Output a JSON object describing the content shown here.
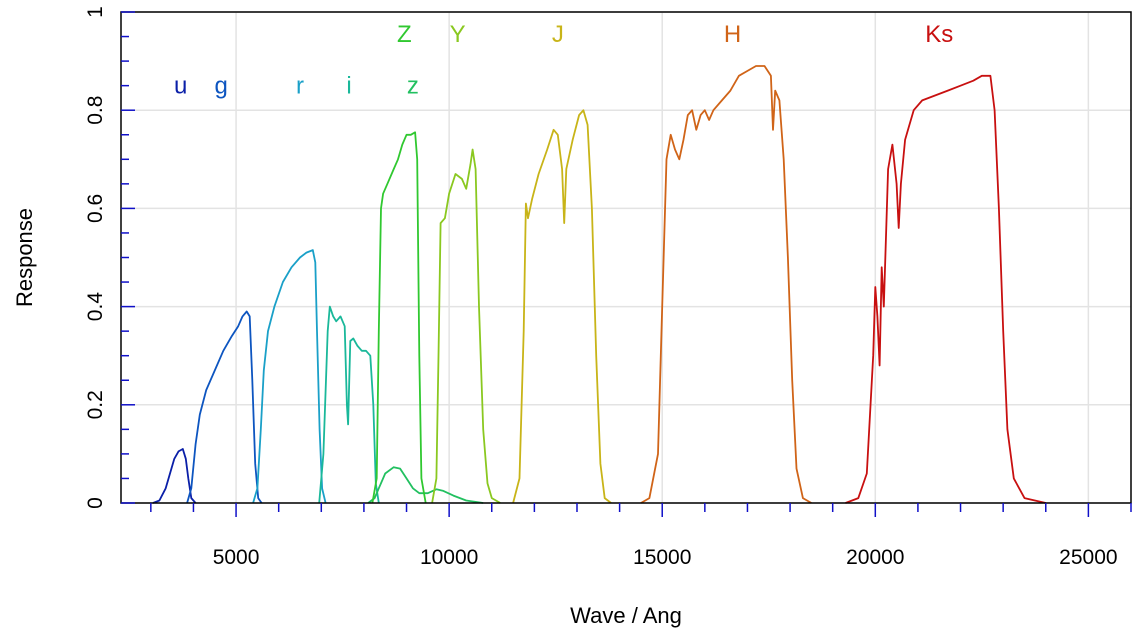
{
  "chart_data": {
    "type": "line",
    "title": "",
    "xlabel": "Wave / Ang",
    "ylabel": "Response",
    "xlim": [
      2300,
      26000
    ],
    "ylim": [
      0,
      1.0
    ],
    "x_ticks": [
      5000,
      10000,
      15000,
      20000,
      25000
    ],
    "x_tick_labels": [
      "5000",
      "10000",
      "15000",
      "20000",
      "25000"
    ],
    "x_minor_step": 1000,
    "y_ticks": [
      0,
      0.2,
      0.4,
      0.6,
      0.8,
      1.0
    ],
    "y_tick_labels": [
      "0",
      "0.2",
      "0.4",
      "0.6",
      "0.8",
      "1"
    ],
    "y_minor_step": 0.05,
    "grid": true,
    "series": [
      {
        "name": "u",
        "color": "#0a1fa8",
        "label_at": [
          3700,
          0.85
        ],
        "points": [
          [
            3050,
            0
          ],
          [
            3200,
            0.005
          ],
          [
            3350,
            0.03
          ],
          [
            3450,
            0.06
          ],
          [
            3550,
            0.09
          ],
          [
            3650,
            0.105
          ],
          [
            3750,
            0.11
          ],
          [
            3820,
            0.09
          ],
          [
            3880,
            0.05
          ],
          [
            3950,
            0.01
          ],
          [
            4050,
            0
          ]
        ]
      },
      {
        "name": "g",
        "color": "#0d55c0",
        "label_at": [
          4650,
          0.85
        ],
        "points": [
          [
            3850,
            0
          ],
          [
            3950,
            0.03
          ],
          [
            4050,
            0.12
          ],
          [
            4150,
            0.18
          ],
          [
            4300,
            0.23
          ],
          [
            4500,
            0.27
          ],
          [
            4700,
            0.31
          ],
          [
            4900,
            0.34
          ],
          [
            5050,
            0.36
          ],
          [
            5150,
            0.38
          ],
          [
            5250,
            0.39
          ],
          [
            5320,
            0.38
          ],
          [
            5380,
            0.25
          ],
          [
            5450,
            0.08
          ],
          [
            5520,
            0.01
          ],
          [
            5600,
            0
          ]
        ]
      },
      {
        "name": "r",
        "color": "#1aa0c8",
        "label_at": [
          6500,
          0.85
        ],
        "points": [
          [
            5400,
            0
          ],
          [
            5500,
            0.03
          ],
          [
            5580,
            0.15
          ],
          [
            5650,
            0.27
          ],
          [
            5750,
            0.35
          ],
          [
            5900,
            0.4
          ],
          [
            6100,
            0.45
          ],
          [
            6300,
            0.48
          ],
          [
            6500,
            0.5
          ],
          [
            6650,
            0.51
          ],
          [
            6800,
            0.515
          ],
          [
            6860,
            0.49
          ],
          [
            6900,
            0.35
          ],
          [
            6960,
            0.15
          ],
          [
            7020,
            0.03
          ],
          [
            7100,
            0
          ]
        ]
      },
      {
        "name": "i",
        "color": "#1ab89a",
        "label_at": [
          7650,
          0.85
        ],
        "points": [
          [
            6950,
            0
          ],
          [
            7050,
            0.1
          ],
          [
            7150,
            0.35
          ],
          [
            7200,
            0.4
          ],
          [
            7280,
            0.38
          ],
          [
            7350,
            0.37
          ],
          [
            7450,
            0.38
          ],
          [
            7550,
            0.36
          ],
          [
            7600,
            0.2
          ],
          [
            7630,
            0.16
          ],
          [
            7680,
            0.33
          ],
          [
            7750,
            0.335
          ],
          [
            7850,
            0.32
          ],
          [
            7950,
            0.31
          ],
          [
            8050,
            0.31
          ],
          [
            8150,
            0.3
          ],
          [
            8220,
            0.2
          ],
          [
            8280,
            0.04
          ],
          [
            8350,
            0
          ]
        ]
      },
      {
        "name": "z",
        "color": "#22c060",
        "label_at": [
          9150,
          0.85
        ],
        "points": [
          [
            8100,
            0
          ],
          [
            8250,
            0.01
          ],
          [
            8350,
            0.03
          ],
          [
            8500,
            0.06
          ],
          [
            8700,
            0.073
          ],
          [
            8850,
            0.07
          ],
          [
            9000,
            0.05
          ],
          [
            9150,
            0.03
          ],
          [
            9300,
            0.02
          ],
          [
            9500,
            0.02
          ],
          [
            9700,
            0.028
          ],
          [
            9850,
            0.025
          ],
          [
            10100,
            0.015
          ],
          [
            10400,
            0.005
          ],
          [
            10800,
            0
          ]
        ]
      },
      {
        "name": "Z",
        "color": "#30c830",
        "label_at": [
          8950,
          0.955
        ],
        "points": [
          [
            8200,
            0
          ],
          [
            8300,
            0.05
          ],
          [
            8350,
            0.35
          ],
          [
            8400,
            0.6
          ],
          [
            8450,
            0.63
          ],
          [
            8550,
            0.65
          ],
          [
            8700,
            0.68
          ],
          [
            8800,
            0.7
          ],
          [
            8900,
            0.73
          ],
          [
            9000,
            0.75
          ],
          [
            9100,
            0.75
          ],
          [
            9200,
            0.755
          ],
          [
            9250,
            0.7
          ],
          [
            9300,
            0.3
          ],
          [
            9350,
            0.05
          ],
          [
            9450,
            0
          ]
        ]
      },
      {
        "name": "Y",
        "color": "#8ac820",
        "label_at": [
          10200,
          0.955
        ],
        "points": [
          [
            9600,
            0
          ],
          [
            9700,
            0.05
          ],
          [
            9750,
            0.3
          ],
          [
            9800,
            0.57
          ],
          [
            9900,
            0.58
          ],
          [
            10000,
            0.63
          ],
          [
            10150,
            0.67
          ],
          [
            10300,
            0.66
          ],
          [
            10400,
            0.64
          ],
          [
            10500,
            0.69
          ],
          [
            10550,
            0.72
          ],
          [
            10620,
            0.68
          ],
          [
            10700,
            0.4
          ],
          [
            10800,
            0.15
          ],
          [
            10900,
            0.04
          ],
          [
            11000,
            0.01
          ],
          [
            11200,
            0
          ]
        ]
      },
      {
        "name": "J",
        "color": "#c8b418",
        "label_at": [
          12550,
          0.955
        ],
        "points": [
          [
            11500,
            0
          ],
          [
            11650,
            0.05
          ],
          [
            11750,
            0.35
          ],
          [
            11800,
            0.61
          ],
          [
            11850,
            0.58
          ],
          [
            11950,
            0.62
          ],
          [
            12100,
            0.67
          ],
          [
            12300,
            0.72
          ],
          [
            12450,
            0.76
          ],
          [
            12550,
            0.75
          ],
          [
            12650,
            0.68
          ],
          [
            12700,
            0.57
          ],
          [
            12750,
            0.68
          ],
          [
            12900,
            0.74
          ],
          [
            13050,
            0.79
          ],
          [
            13150,
            0.8
          ],
          [
            13250,
            0.77
          ],
          [
            13350,
            0.6
          ],
          [
            13450,
            0.3
          ],
          [
            13550,
            0.08
          ],
          [
            13650,
            0.01
          ],
          [
            13800,
            0
          ]
        ]
      },
      {
        "name": "H",
        "color": "#d06418",
        "label_at": [
          16650,
          0.955
        ],
        "points": [
          [
            14500,
            0
          ],
          [
            14700,
            0.01
          ],
          [
            14900,
            0.1
          ],
          [
            15000,
            0.4
          ],
          [
            15100,
            0.7
          ],
          [
            15200,
            0.75
          ],
          [
            15300,
            0.72
          ],
          [
            15400,
            0.7
          ],
          [
            15500,
            0.74
          ],
          [
            15600,
            0.79
          ],
          [
            15700,
            0.8
          ],
          [
            15800,
            0.76
          ],
          [
            15900,
            0.79
          ],
          [
            16000,
            0.8
          ],
          [
            16100,
            0.78
          ],
          [
            16200,
            0.8
          ],
          [
            16400,
            0.82
          ],
          [
            16600,
            0.84
          ],
          [
            16800,
            0.87
          ],
          [
            17000,
            0.88
          ],
          [
            17200,
            0.89
          ],
          [
            17400,
            0.89
          ],
          [
            17550,
            0.87
          ],
          [
            17600,
            0.76
          ],
          [
            17650,
            0.84
          ],
          [
            17750,
            0.82
          ],
          [
            17850,
            0.7
          ],
          [
            17950,
            0.5
          ],
          [
            18050,
            0.25
          ],
          [
            18150,
            0.07
          ],
          [
            18300,
            0.01
          ],
          [
            18500,
            0
          ]
        ]
      },
      {
        "name": "Ks",
        "color": "#c81010",
        "label_at": [
          21500,
          0.955
        ],
        "points": [
          [
            19300,
            0
          ],
          [
            19600,
            0.01
          ],
          [
            19800,
            0.06
          ],
          [
            19950,
            0.3
          ],
          [
            20000,
            0.44
          ],
          [
            20050,
            0.38
          ],
          [
            20100,
            0.28
          ],
          [
            20150,
            0.48
          ],
          [
            20200,
            0.4
          ],
          [
            20300,
            0.68
          ],
          [
            20400,
            0.73
          ],
          [
            20500,
            0.65
          ],
          [
            20550,
            0.56
          ],
          [
            20600,
            0.65
          ],
          [
            20700,
            0.74
          ],
          [
            20900,
            0.8
          ],
          [
            21100,
            0.82
          ],
          [
            21400,
            0.83
          ],
          [
            21700,
            0.84
          ],
          [
            22000,
            0.85
          ],
          [
            22300,
            0.86
          ],
          [
            22500,
            0.87
          ],
          [
            22700,
            0.87
          ],
          [
            22800,
            0.8
          ],
          [
            22900,
            0.6
          ],
          [
            23000,
            0.35
          ],
          [
            23100,
            0.15
          ],
          [
            23250,
            0.05
          ],
          [
            23500,
            0.01
          ],
          [
            24000,
            0
          ]
        ]
      }
    ]
  }
}
